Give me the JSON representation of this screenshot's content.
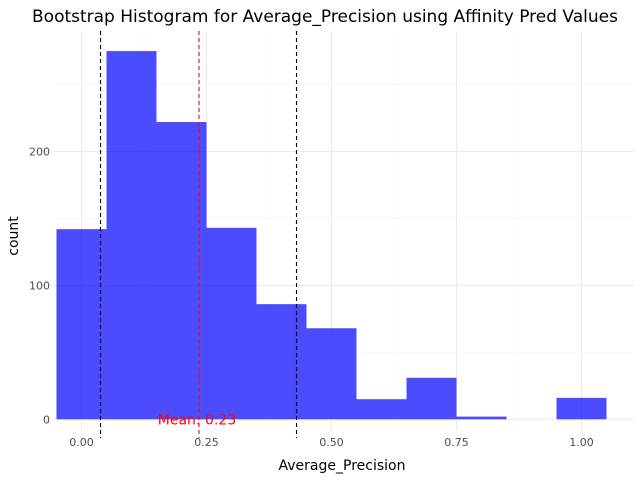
{
  "chart_data": {
    "type": "bar",
    "title": "Bootstrap Histogram for Average_Precision using Affinity Pred Values",
    "xlabel": "Average_Precision",
    "ylabel": "count",
    "xlim": [
      -0.055,
      1.105
    ],
    "ylim": [
      -8,
      290
    ],
    "x_ticks": [
      0.0,
      0.25,
      0.5,
      0.75,
      1.0
    ],
    "x_tick_labels": [
      "0.00",
      "0.25",
      "0.50",
      "0.75",
      "1.00"
    ],
    "y_ticks": [
      0,
      100,
      200
    ],
    "y_tick_labels": [
      "0",
      "100",
      "200"
    ],
    "grid": true,
    "bar_color": "#0000ff",
    "bins": [
      {
        "x0": -0.05,
        "x1": 0.05,
        "count": 142
      },
      {
        "x0": 0.05,
        "x1": 0.15,
        "count": 275
      },
      {
        "x0": 0.15,
        "x1": 0.25,
        "count": 222
      },
      {
        "x0": 0.25,
        "x1": 0.35,
        "count": 143
      },
      {
        "x0": 0.35,
        "x1": 0.45,
        "count": 86
      },
      {
        "x0": 0.45,
        "x1": 0.55,
        "count": 68
      },
      {
        "x0": 0.55,
        "x1": 0.65,
        "count": 15
      },
      {
        "x0": 0.65,
        "x1": 0.75,
        "count": 31
      },
      {
        "x0": 0.75,
        "x1": 0.85,
        "count": 2
      },
      {
        "x0": 0.85,
        "x1": 0.95,
        "count": 0
      },
      {
        "x0": 0.95,
        "x1": 1.05,
        "count": 16
      }
    ],
    "reference_lines": [
      {
        "kind": "ci-lower",
        "x": 0.038,
        "color": "#000000"
      },
      {
        "kind": "mean",
        "x": 0.235,
        "color": "#ff0000"
      },
      {
        "kind": "ci-upper",
        "x": 0.43,
        "color": "#000000"
      }
    ],
    "annotation": {
      "text": "Mean: 0.23",
      "x": 0.235,
      "y": 0,
      "color": "#ff0000"
    }
  }
}
